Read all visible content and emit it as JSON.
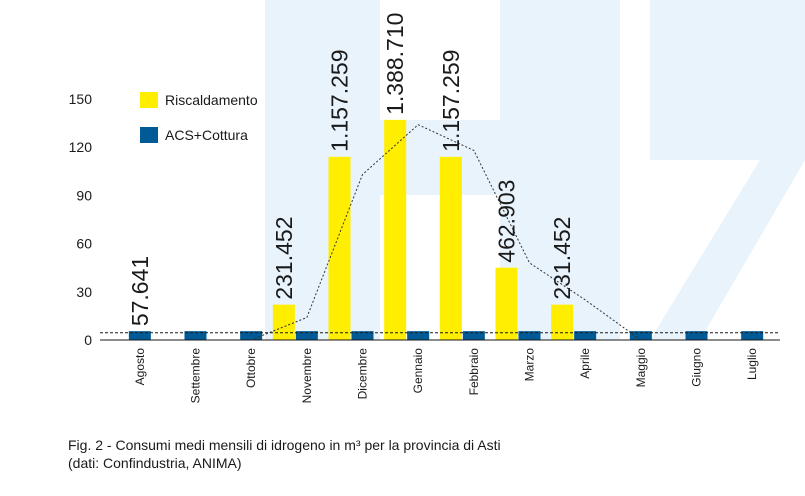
{
  "chart_data": {
    "type": "bar",
    "categories": [
      "Agosto",
      "Settembre",
      "Ottobre",
      "Novembre",
      "Dicembre",
      "Gennaio",
      "Febbraio",
      "Marzo",
      "Aprile",
      "Maggio",
      "Giugno",
      "Luglio"
    ],
    "series": [
      {
        "name": "Riscaldamento",
        "color": "#ffee00",
        "values": [
          0,
          0,
          0,
          22,
          114,
          137,
          114,
          45,
          22,
          0,
          0,
          0
        ]
      },
      {
        "name": "ACS+Cottura",
        "color": "#005a96",
        "values": [
          5.5,
          5.5,
          5.5,
          5.5,
          5.5,
          5.5,
          5.5,
          5.5,
          5.5,
          5.5,
          5.5,
          5.5
        ]
      }
    ],
    "trend": {
      "color": "#333333",
      "values": [
        null,
        null,
        0,
        14,
        103,
        134,
        118,
        48,
        25,
        0,
        null,
        null
      ]
    },
    "reference_line": 4.5,
    "month_totals": [
      "57.641",
      null,
      null,
      "231.452",
      "1.157.259",
      "1.388.710",
      "1.157.259",
      "462.903",
      "231.452",
      null,
      null,
      null
    ],
    "ylim": [
      0,
      150
    ],
    "yticks": [
      0,
      30,
      60,
      90,
      120,
      150
    ],
    "caption": [
      "Fig. 2 - Consumi medi mensili di idrogeno in m³ per la provincia di Asti",
      "(dati: Confindustria, ANIMA)"
    ]
  }
}
